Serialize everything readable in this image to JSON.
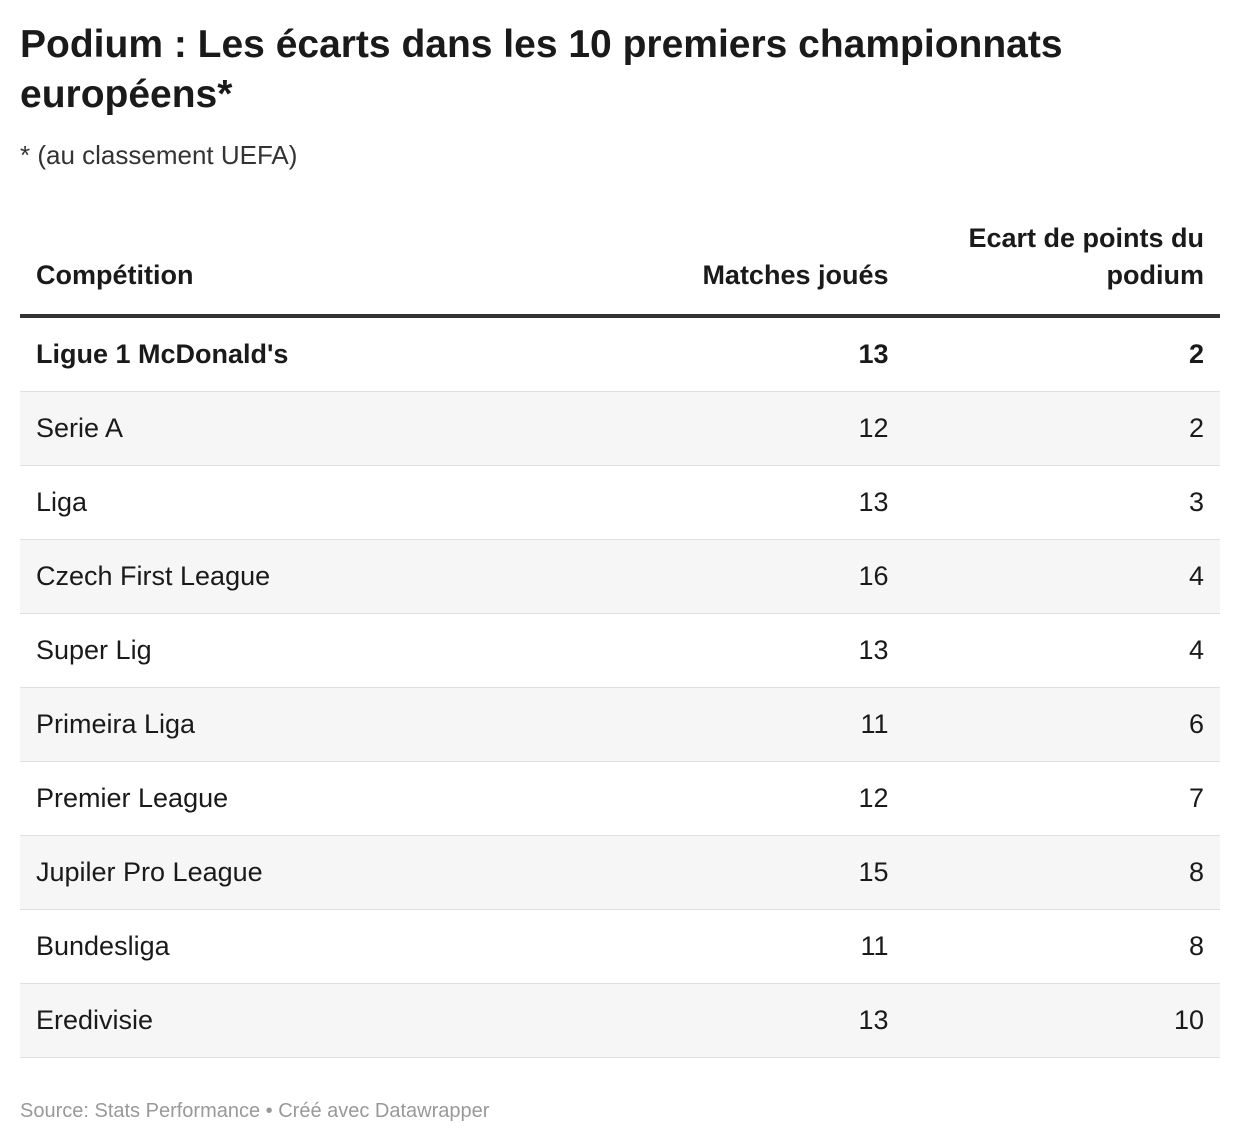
{
  "header": {
    "title": "Podium : Les écarts dans les 10 premiers championnats européens*",
    "subtitle": "* (au classement UEFA)"
  },
  "table": {
    "columns": [
      "Compétition",
      "Matches joués",
      "Ecart de points du podium"
    ],
    "rows": [
      [
        "Ligue 1 McDonald's",
        13,
        2
      ],
      [
        "Serie A",
        12,
        2
      ],
      [
        "Liga",
        13,
        3
      ],
      [
        "Czech First League",
        16,
        4
      ],
      [
        "Super Lig",
        13,
        4
      ],
      [
        "Primeira Liga",
        11,
        6
      ],
      [
        "Premier League",
        12,
        7
      ],
      [
        "Jupiler Pro League",
        15,
        8
      ],
      [
        "Bundesliga",
        11,
        8
      ],
      [
        "Eredivisie",
        13,
        10
      ]
    ]
  },
  "footer": {
    "source": "Source: Stats Performance • Créé avec Datawrapper"
  }
}
